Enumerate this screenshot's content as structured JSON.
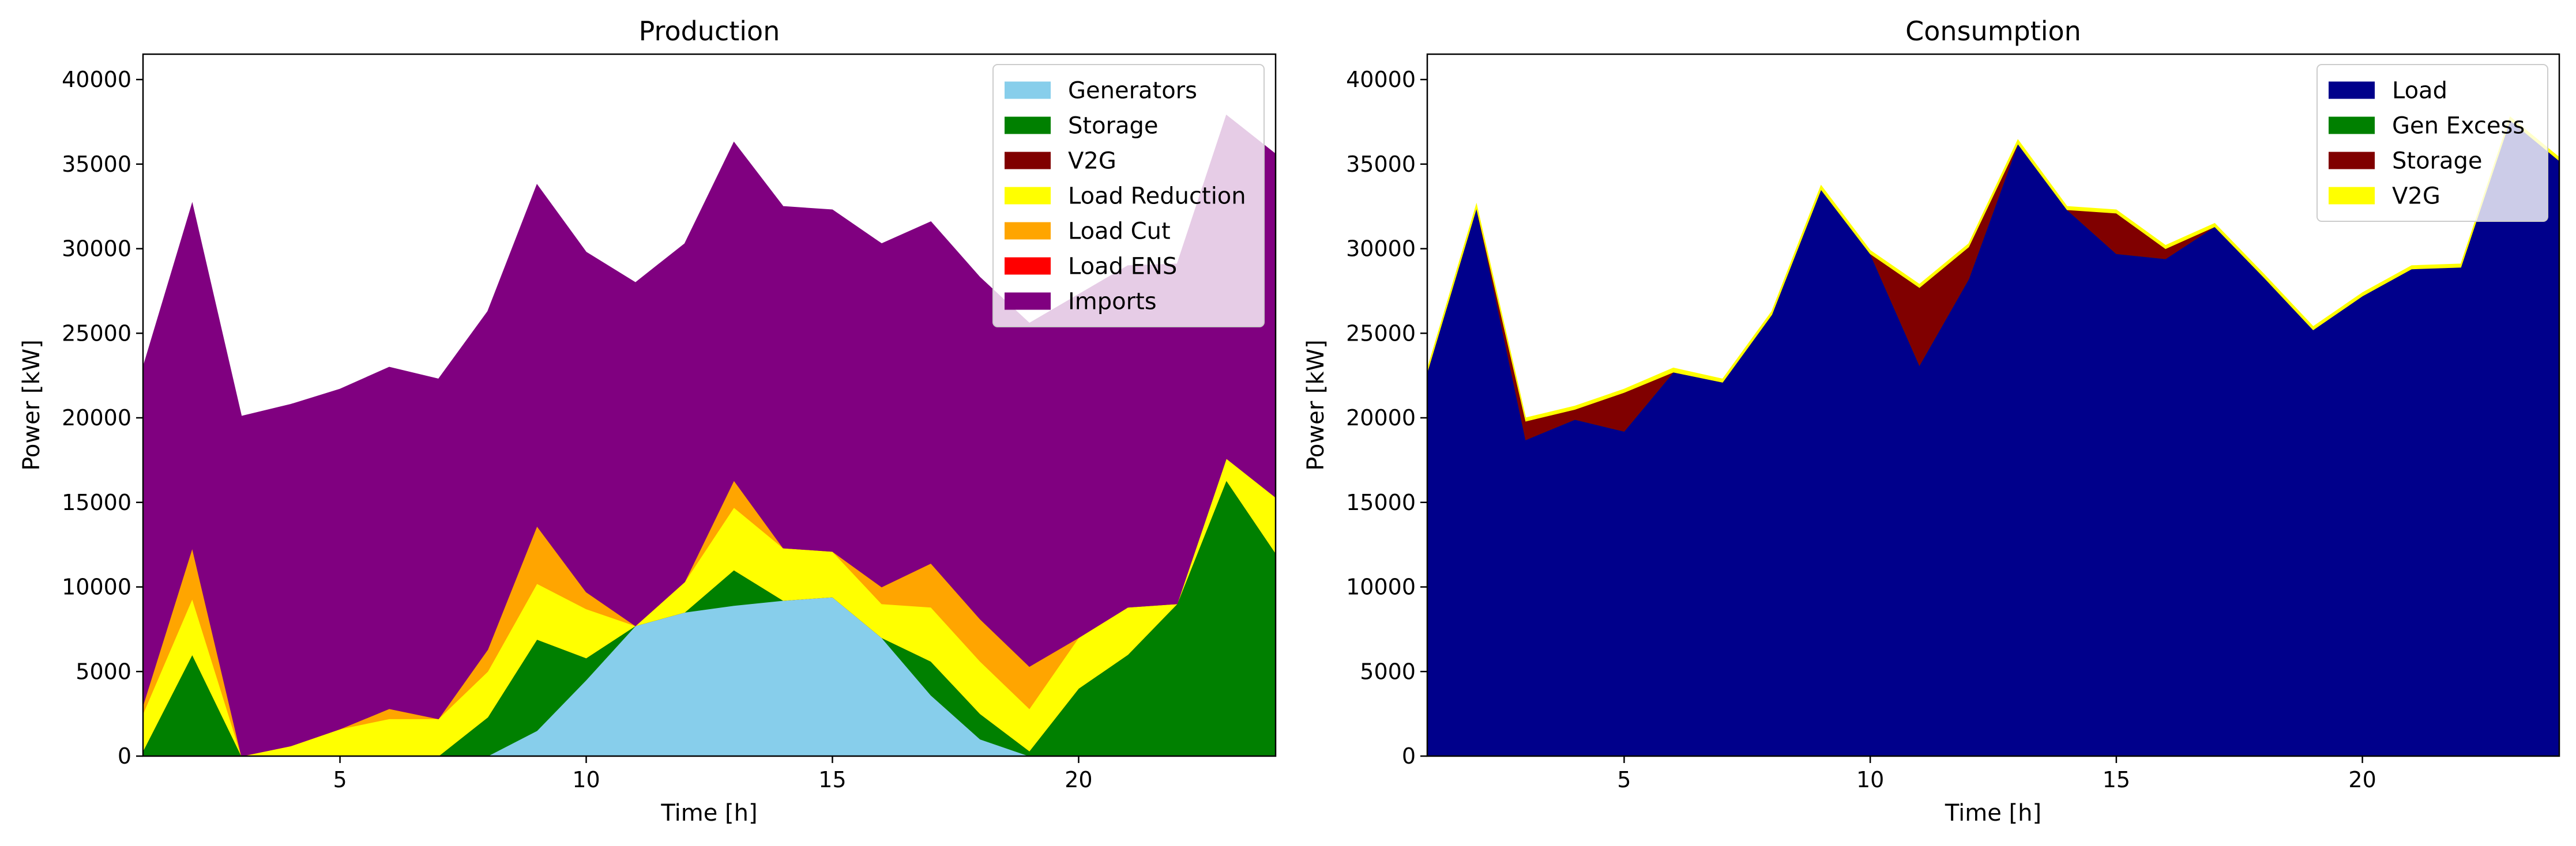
{
  "chart_data": [
    {
      "type": "area",
      "stacked": true,
      "title": "Production",
      "xlabel": "Time [h]",
      "ylabel": "Power [kW]",
      "xlim": [
        1,
        24
      ],
      "ylim": [
        0,
        41500
      ],
      "xticks": [
        5,
        10,
        15,
        20
      ],
      "yticks": [
        0,
        5000,
        10000,
        15000,
        20000,
        25000,
        30000,
        35000,
        40000
      ],
      "legend_position": "top-right",
      "x": [
        1,
        2,
        3,
        4,
        5,
        6,
        7,
        8,
        9,
        10,
        11,
        12,
        13,
        14,
        15,
        16,
        17,
        18,
        19,
        20,
        21,
        22,
        23,
        24
      ],
      "series": [
        {
          "name": "Generators",
          "color": "#87ceeb",
          "values": [
            0,
            0,
            0,
            0,
            0,
            0,
            0,
            0,
            1500,
            4500,
            7700,
            8500,
            8900,
            9200,
            9400,
            7000,
            3600,
            1000,
            0,
            0,
            0,
            0,
            0,
            0
          ]
        },
        {
          "name": "Storage",
          "color": "#008000",
          "values": [
            300,
            6000,
            0,
            0,
            0,
            0,
            0,
            2300,
            5400,
            1300,
            0,
            0,
            2100,
            0,
            0,
            0,
            2000,
            1500,
            300,
            4000,
            6000,
            9000,
            16300,
            12000
          ]
        },
        {
          "name": "V2G",
          "color": "#800000",
          "values": [
            0,
            0,
            0,
            0,
            0,
            0,
            0,
            0,
            0,
            0,
            0,
            0,
            0,
            0,
            0,
            0,
            0,
            0,
            0,
            0,
            0,
            0,
            0,
            0
          ]
        },
        {
          "name": "Load Reduction",
          "color": "#ffff00",
          "values": [
            2200,
            3300,
            0,
            600,
            1600,
            2200,
            2200,
            2700,
            3300,
            2900,
            0,
            1800,
            3700,
            3100,
            2700,
            2000,
            3200,
            3100,
            2500,
            3000,
            2800,
            0,
            1300,
            3300
          ]
        },
        {
          "name": "Load Cut",
          "color": "#ffa500",
          "values": [
            500,
            3000,
            0,
            0,
            0,
            600,
            0,
            1300,
            3400,
            1000,
            0,
            0,
            1600,
            0,
            0,
            1000,
            2600,
            2500,
            2500,
            0,
            0,
            0,
            0,
            0
          ]
        },
        {
          "name": "Load ENS",
          "color": "#ff0000",
          "values": [
            0,
            0,
            0,
            0,
            0,
            0,
            0,
            0,
            0,
            0,
            0,
            0,
            0,
            0,
            0,
            0,
            0,
            0,
            0,
            0,
            0,
            0,
            0,
            0
          ]
        },
        {
          "name": "Imports",
          "color": "#800080",
          "values": [
            20000,
            20400,
            20100,
            20200,
            20100,
            20200,
            20100,
            20000,
            20200,
            20100,
            20300,
            20000,
            20000,
            20200,
            20200,
            20300,
            20200,
            20200,
            20300,
            20300,
            20200,
            20100,
            20300,
            20300
          ]
        }
      ]
    },
    {
      "type": "area",
      "stacked": true,
      "title": "Consumption",
      "xlabel": "Time [h]",
      "ylabel": "Power [kW]",
      "xlim": [
        1,
        24
      ],
      "ylim": [
        0,
        41500
      ],
      "xticks": [
        5,
        10,
        15,
        20
      ],
      "yticks": [
        0,
        5000,
        10000,
        15000,
        20000,
        25000,
        30000,
        35000,
        40000
      ],
      "legend_position": "top-right",
      "x": [
        1,
        2,
        3,
        4,
        5,
        6,
        7,
        8,
        9,
        10,
        11,
        12,
        13,
        14,
        15,
        16,
        17,
        18,
        19,
        20,
        21,
        22,
        23,
        24
      ],
      "series": [
        {
          "name": "Load",
          "color": "#00008b",
          "values": [
            22700,
            32400,
            18700,
            19900,
            19200,
            22700,
            22100,
            26100,
            33500,
            29700,
            23100,
            28200,
            36200,
            32300,
            29700,
            29400,
            31300,
            28300,
            25200,
            27200,
            28800,
            28900,
            37600,
            35200
          ]
        },
        {
          "name": "Gen Excess",
          "color": "#008000",
          "values": [
            0,
            0,
            0,
            0,
            0,
            0,
            0,
            0,
            0,
            0,
            0,
            0,
            0,
            0,
            0,
            0,
            0,
            0,
            0,
            0,
            0,
            0,
            0,
            0
          ]
        },
        {
          "name": "Storage",
          "color": "#800000",
          "values": [
            0,
            0,
            1100,
            600,
            2300,
            0,
            0,
            0,
            0,
            0,
            4600,
            1900,
            0,
            0,
            2400,
            600,
            0,
            0,
            0,
            0,
            0,
            0,
            0,
            0
          ]
        },
        {
          "name": "V2G",
          "color": "#ffff00",
          "values": [
            200,
            250,
            200,
            200,
            200,
            250,
            200,
            200,
            250,
            200,
            200,
            200,
            250,
            200,
            200,
            200,
            200,
            200,
            200,
            200,
            200,
            200,
            200,
            200
          ]
        }
      ]
    }
  ]
}
